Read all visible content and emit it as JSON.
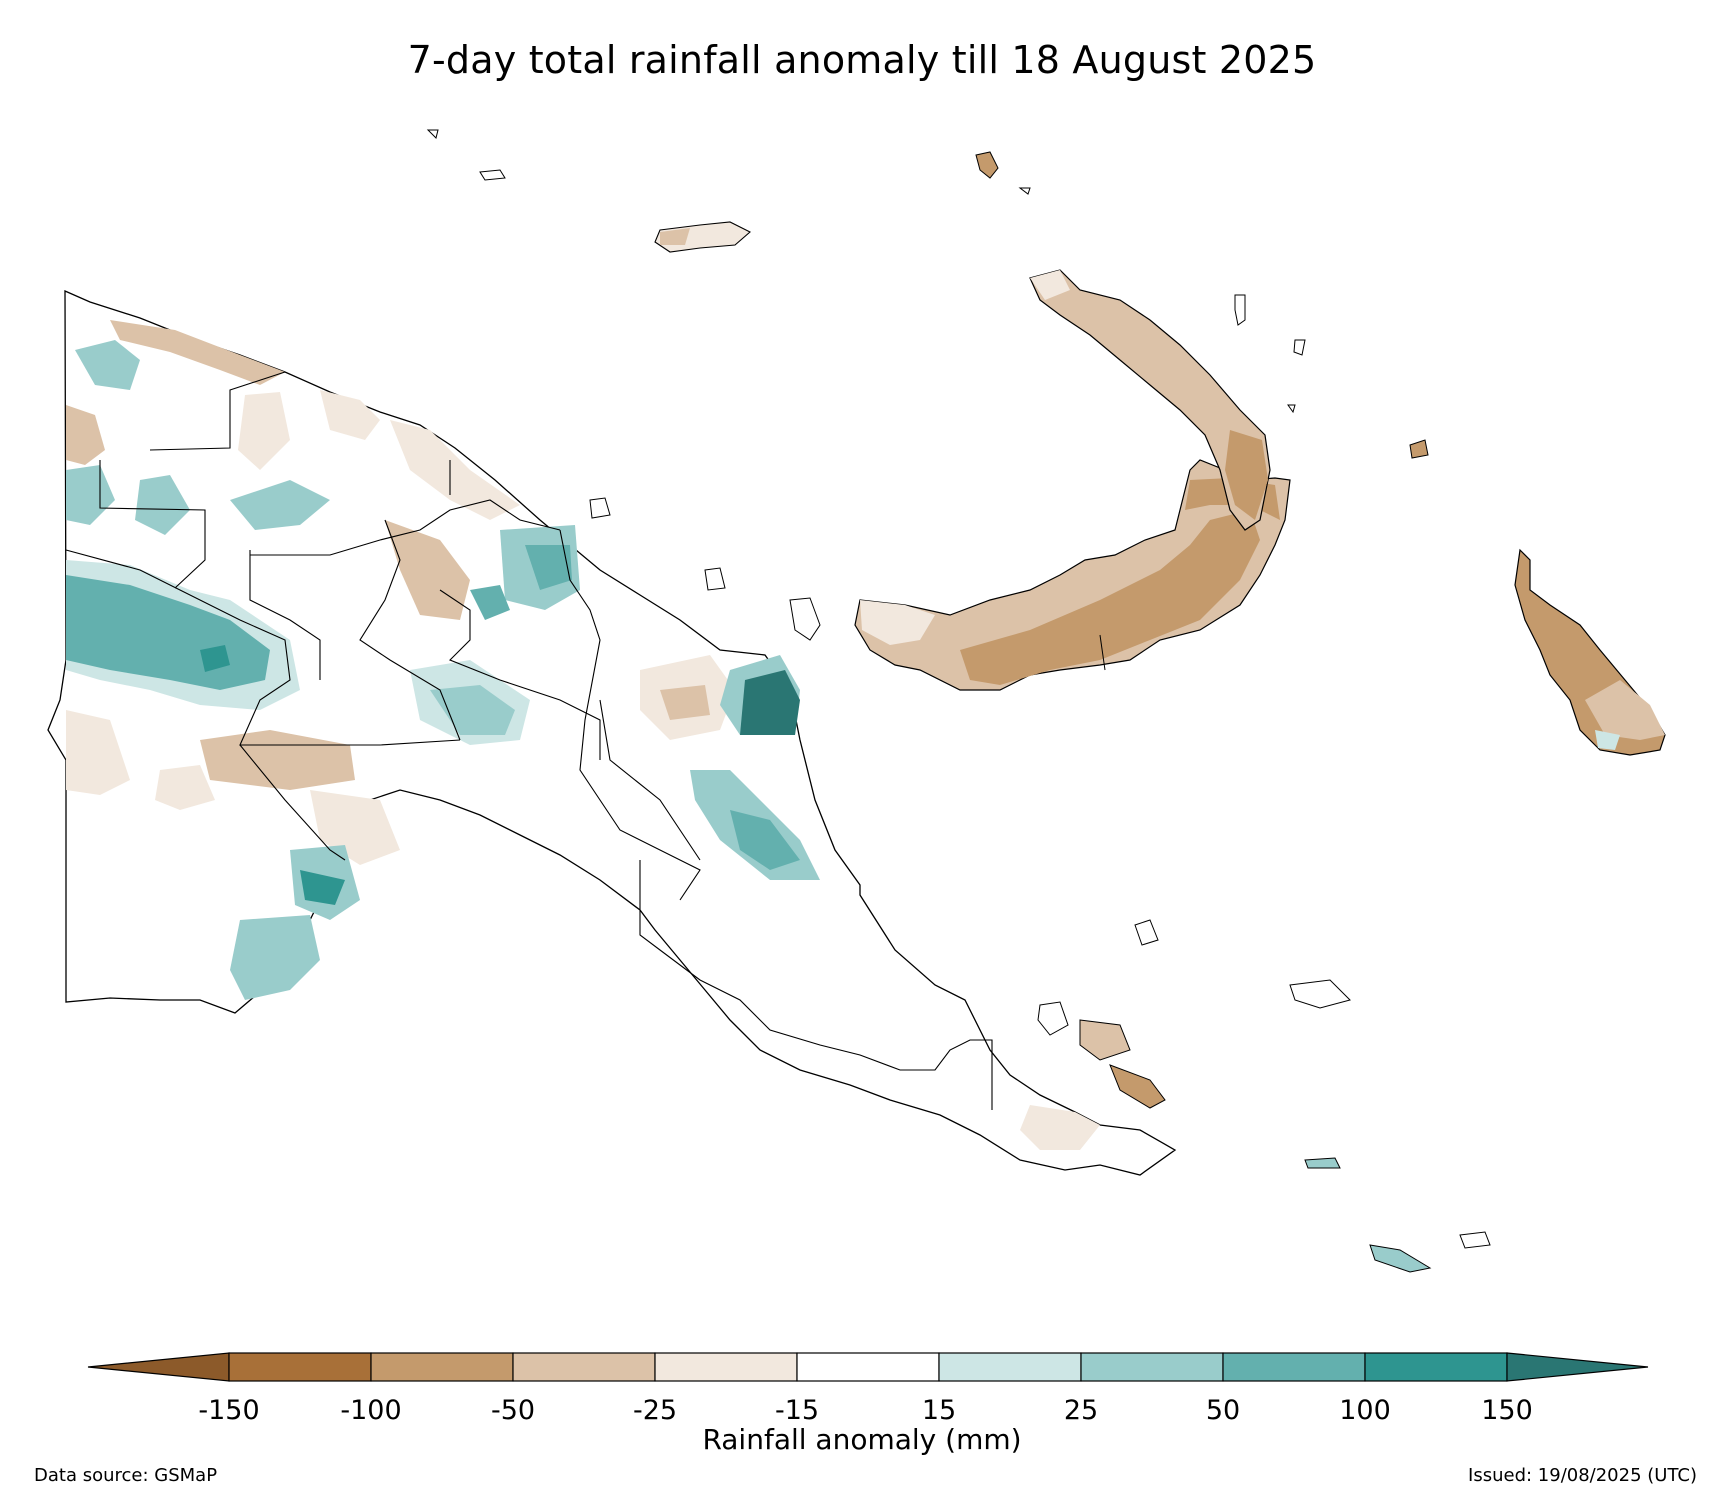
{
  "title": "7-day total rainfall anomaly till 18 August 2025",
  "colorbar": {
    "label": "Rainfall anomaly (mm)",
    "ticks": [
      "-150",
      "-100",
      "-50",
      "-25",
      "-15",
      "15",
      "25",
      "50",
      "100",
      "150"
    ],
    "bins": [
      {
        "range": "< -150",
        "color": "#8c5a2a"
      },
      {
        "range": "-150 to -100",
        "color": "#a87038"
      },
      {
        "range": "-100 to -50",
        "color": "#c49a6c"
      },
      {
        "range": "-50 to -25",
        "color": "#dcc2a8"
      },
      {
        "range": "-25 to -15",
        "color": "#f2e8de"
      },
      {
        "range": "-15 to 15",
        "color": "#ffffff"
      },
      {
        "range": "15 to 25",
        "color": "#cde6e5"
      },
      {
        "range": "25 to 50",
        "color": "#99cccb"
      },
      {
        "range": "50 to 100",
        "color": "#63b0ae"
      },
      {
        "range": "100 to 150",
        "color": "#2e9590"
      },
      {
        "range": "> 150",
        "color": "#2a7673"
      }
    ]
  },
  "footer": {
    "source": "Data source: GSMaP",
    "issued": "Issued: 19/08/2025 (UTC)"
  }
}
